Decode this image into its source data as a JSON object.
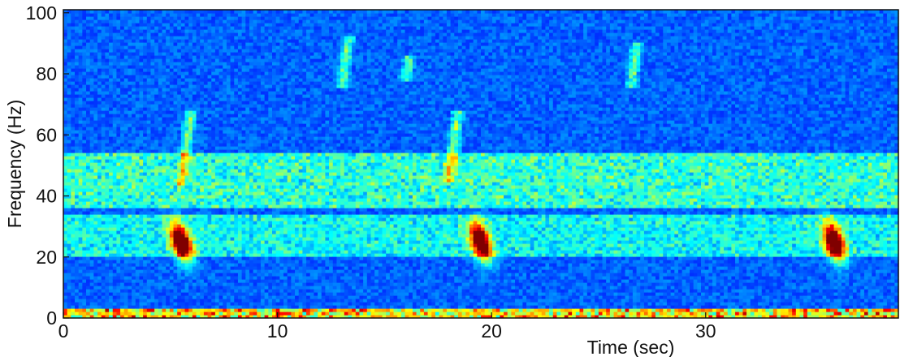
{
  "chart_data": {
    "type": "heatmap",
    "title": "",
    "xlabel": "Time (sec)",
    "ylabel": "Frequency (Hz)",
    "xlim": [
      0,
      39
    ],
    "ylim": [
      0,
      101
    ],
    "xticks": [
      0,
      10,
      20,
      30
    ],
    "xtick_labels": [
      "0",
      "10",
      "20",
      "30"
    ],
    "yticks": [
      0,
      20,
      40,
      60,
      80,
      100
    ],
    "ytick_labels": [
      "0",
      "20",
      "40",
      "60",
      "80",
      "100"
    ],
    "colormap": "jet",
    "colors": {
      "background": "#1a3c9c",
      "low": "#13236e",
      "mid": "#2aa6e0",
      "high": "#f0e23a",
      "peak": "#e0201c"
    },
    "grid": false,
    "features": [
      {
        "kind": "call",
        "time_center": 5.5,
        "freq_low": 17,
        "freq_high": 33,
        "intensity": 1.0
      },
      {
        "kind": "call",
        "time_center": 19.5,
        "freq_low": 17,
        "freq_high": 33,
        "intensity": 1.0
      },
      {
        "kind": "call",
        "time_center": 36.0,
        "freq_low": 17,
        "freq_high": 33,
        "intensity": 1.0
      },
      {
        "kind": "band",
        "freq_low": 0,
        "freq_high": 3,
        "intensity": 0.65,
        "extent": "full duration"
      },
      {
        "kind": "band",
        "freq_low": 36,
        "freq_high": 54,
        "intensity": 0.45,
        "extent": "full duration"
      },
      {
        "kind": "band",
        "freq_low": 20,
        "freq_high": 34,
        "intensity": 0.4,
        "extent": "full duration"
      },
      {
        "kind": "streak",
        "time_center": 5.5,
        "freq_low": 44,
        "freq_high": 68,
        "intensity": 0.6
      },
      {
        "kind": "streak",
        "time_center": 13.0,
        "freq_low": 75,
        "freq_high": 92,
        "intensity": 0.55
      },
      {
        "kind": "streak",
        "time_center": 16.0,
        "freq_low": 78,
        "freq_high": 86,
        "intensity": 0.5
      },
      {
        "kind": "streak",
        "time_center": 18.0,
        "freq_low": 45,
        "freq_high": 68,
        "intensity": 0.6
      },
      {
        "kind": "streak",
        "time_center": 26.5,
        "freq_low": 75,
        "freq_high": 90,
        "intensity": 0.55
      }
    ]
  }
}
